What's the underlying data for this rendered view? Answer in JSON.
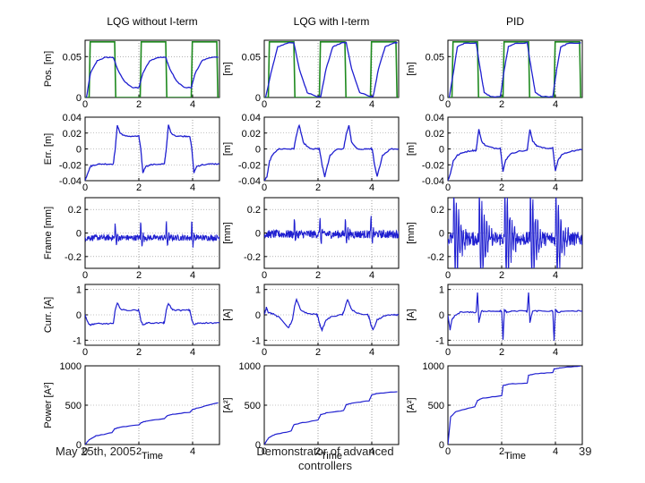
{
  "footer": {
    "date": "May 25th, 2005",
    "center": "Demonstrator of advanced controllers",
    "page": "39"
  },
  "colors": {
    "blue": "#1f1fd0",
    "green": "#1f8a1f",
    "axis": "#000000",
    "grid": "#888888"
  },
  "chart_data": {
    "type": "line",
    "layout": "5x3 subplot grid",
    "columns": [
      "LQG without I-term",
      "LQG with I-term",
      "PID"
    ],
    "xlabel": "Time",
    "xlim": [
      0,
      5
    ],
    "xticks": [
      0,
      2,
      4
    ],
    "xtick_labels": [
      "0",
      "2",
      "4"
    ],
    "rows": [
      {
        "key": "pos",
        "ylabels": [
          "Pos. [m]",
          "[m]",
          "[m]"
        ],
        "ylim": [
          0,
          0.07
        ],
        "yticks": [
          0,
          0.05
        ],
        "ytick_labels": [
          "0",
          "0.05"
        ],
        "series": [
          {
            "name": "reference",
            "color": "green"
          },
          {
            "name": "position",
            "color": "blue"
          }
        ]
      },
      {
        "key": "err",
        "ylabels": [
          "Err. [m]",
          "[m]",
          "[m]"
        ],
        "ylim": [
          -0.04,
          0.04
        ],
        "yticks": [
          -0.04,
          -0.02,
          0,
          0.02,
          0.04
        ],
        "ytick_labels": [
          "-0.04",
          "-0.02",
          "0",
          "0.02",
          "0.04"
        ],
        "series": [
          {
            "name": "error",
            "color": "blue"
          }
        ]
      },
      {
        "key": "frame",
        "ylabels": [
          "Frame [mm]",
          "[mm]",
          "[mm]"
        ],
        "ylim": [
          -0.3,
          0.3
        ],
        "yticks": [
          -0.2,
          0,
          0.2
        ],
        "ytick_labels": [
          "-0.2",
          "0",
          "0.2"
        ],
        "series": [
          {
            "name": "frame",
            "color": "blue"
          }
        ]
      },
      {
        "key": "curr",
        "ylabels": [
          "Curr. [A]",
          "[A]",
          "[A]"
        ],
        "ylim": [
          -1.2,
          1.2
        ],
        "yticks": [
          -1,
          0,
          1
        ],
        "ytick_labels": [
          "-1",
          "0",
          "1"
        ],
        "series": [
          {
            "name": "current",
            "color": "blue"
          }
        ]
      },
      {
        "key": "power",
        "ylabels": [
          "Power [A²]",
          "[A²]",
          "[A²]"
        ],
        "ylim": [
          0,
          1000
        ],
        "yticks": [
          0,
          500,
          1000
        ],
        "ytick_labels": [
          "0",
          "500",
          "1000"
        ],
        "series": [
          {
            "name": "power",
            "color": "blue"
          }
        ]
      }
    ],
    "signals": {
      "reference": {
        "low": 0.0,
        "high": 0.068,
        "switch_times": [
          0.15,
          1.1,
          2.05,
          3.0,
          3.95,
          4.9
        ],
        "start_level": "low"
      },
      "position": [
        {
          "x": [
            0.05,
            0.2,
            0.45,
            0.75,
            1.05,
            1.2,
            1.45,
            1.75,
            2.0,
            2.15,
            2.4,
            2.7,
            3.0,
            3.15,
            3.4,
            3.7,
            3.95,
            4.1,
            4.35,
            4.65,
            4.95
          ],
          "y": [
            0.0,
            0.03,
            0.045,
            0.049,
            0.049,
            0.035,
            0.02,
            0.012,
            0.012,
            0.03,
            0.045,
            0.049,
            0.049,
            0.035,
            0.02,
            0.012,
            0.012,
            0.03,
            0.045,
            0.049,
            0.049
          ]
        },
        {
          "x": [
            0.05,
            0.25,
            0.5,
            0.9,
            1.1,
            1.3,
            1.6,
            2.0,
            2.1,
            2.3,
            2.55,
            2.9,
            3.05,
            3.25,
            3.55,
            3.95,
            4.05,
            4.25,
            4.5,
            4.85,
            4.95
          ],
          "y": [
            0.0,
            0.03,
            0.062,
            0.067,
            0.067,
            0.035,
            0.006,
            0.001,
            0.001,
            0.035,
            0.062,
            0.067,
            0.067,
            0.035,
            0.006,
            0.001,
            0.001,
            0.035,
            0.062,
            0.067,
            0.067
          ]
        },
        {
          "x": [
            0.05,
            0.2,
            0.35,
            0.6,
            1.05,
            1.2,
            1.35,
            1.6,
            1.95,
            2.1,
            2.25,
            2.5,
            2.95,
            3.1,
            3.25,
            3.5,
            3.9,
            4.05,
            4.2,
            4.45,
            4.95
          ],
          "y": [
            0.0,
            0.03,
            0.062,
            0.066,
            0.067,
            0.035,
            0.006,
            0.001,
            0.001,
            0.035,
            0.062,
            0.066,
            0.067,
            0.035,
            0.006,
            0.001,
            0.001,
            0.035,
            0.062,
            0.066,
            0.067
          ]
        }
      ],
      "error": [
        {
          "x": [
            0.0,
            0.1,
            0.2,
            0.35,
            0.6,
            0.9,
            1.05,
            1.12,
            1.2,
            1.3,
            1.5,
            1.8,
            2.0,
            2.07,
            2.15,
            2.25,
            2.45,
            2.8,
            2.95,
            3.02,
            3.1,
            3.2,
            3.4,
            3.7,
            3.9,
            3.97,
            4.05,
            4.15,
            4.35,
            4.7,
            5.0
          ],
          "y": [
            -0.04,
            -0.03,
            -0.022,
            -0.02,
            -0.019,
            -0.019,
            -0.019,
            0.0,
            0.03,
            0.02,
            0.016,
            0.016,
            0.016,
            0.0,
            -0.03,
            -0.022,
            -0.02,
            -0.019,
            -0.019,
            0.0,
            0.03,
            0.02,
            0.016,
            0.016,
            0.016,
            0.0,
            -0.03,
            -0.022,
            -0.02,
            -0.019,
            -0.019
          ]
        },
        {
          "x": [
            0.0,
            0.1,
            0.2,
            0.35,
            0.55,
            0.9,
            1.1,
            1.2,
            1.3,
            1.45,
            1.7,
            2.0,
            2.05,
            2.15,
            2.25,
            2.45,
            2.7,
            2.95,
            3.05,
            3.15,
            3.25,
            3.45,
            3.75,
            3.95,
            4.02,
            4.1,
            4.2,
            4.4,
            4.7,
            5.0
          ],
          "y": [
            -0.04,
            -0.035,
            -0.015,
            -0.005,
            0.0,
            0.0,
            0.0,
            0.018,
            0.03,
            0.008,
            0.0,
            0.0,
            0.0,
            -0.02,
            -0.035,
            -0.008,
            0.0,
            0.0,
            0.018,
            0.03,
            0.008,
            0.0,
            0.0,
            0.0,
            0.0,
            -0.02,
            -0.035,
            -0.008,
            0.0,
            0.0
          ]
        },
        {
          "x": [
            0.0,
            0.1,
            0.2,
            0.35,
            0.6,
            0.9,
            1.05,
            1.15,
            1.25,
            1.4,
            1.7,
            1.95,
            2.05,
            2.15,
            2.3,
            2.6,
            2.95,
            3.05,
            3.15,
            3.3,
            3.6,
            3.9,
            4.0,
            4.1,
            4.25,
            4.55,
            5.0
          ],
          "y": [
            -0.04,
            -0.03,
            -0.015,
            -0.008,
            -0.004,
            -0.002,
            -0.002,
            0.025,
            0.01,
            0.004,
            0.001,
            0.001,
            -0.028,
            -0.014,
            -0.007,
            -0.003,
            -0.002,
            0.025,
            0.01,
            0.004,
            0.001,
            0.001,
            -0.028,
            -0.014,
            -0.007,
            -0.003,
            -0.001
          ]
        }
      ],
      "frame_spikes": [
        {
          "base_noise": 0.025,
          "offset": -0.04,
          "spike_times": [
            1.1,
            2.05,
            3.0,
            3.95
          ],
          "spike_amp": 0.06,
          "decay": 0.06
        },
        {
          "base_noise": 0.035,
          "offset": -0.01,
          "spike_times": [
            1.1,
            2.05,
            3.0,
            3.95
          ],
          "spike_amp": 0.07,
          "decay": 0.06
        },
        {
          "base_noise": 0.06,
          "offset": -0.05,
          "spike_times": [
            0.2,
            1.15,
            2.1,
            3.05,
            4.0
          ],
          "spike_amp": 0.2,
          "decay": 0.18
        }
      ],
      "current": [
        {
          "x": [
            0.0,
            0.1,
            0.2,
            0.35,
            0.6,
            0.9,
            1.05,
            1.12,
            1.2,
            1.35,
            1.6,
            1.95,
            2.0,
            2.07,
            2.15,
            2.3,
            2.55,
            2.9,
            2.95,
            3.02,
            3.1,
            3.25,
            3.5,
            3.85,
            3.9,
            3.97,
            4.05,
            4.2,
            4.45,
            4.8,
            5.0
          ],
          "y": [
            0.0,
            -0.3,
            -0.4,
            -0.35,
            -0.35,
            -0.35,
            -0.35,
            0.2,
            0.45,
            0.2,
            0.18,
            0.18,
            0.18,
            -0.2,
            -0.4,
            -0.32,
            -0.32,
            -0.32,
            -0.32,
            0.2,
            0.45,
            0.2,
            0.18,
            0.18,
            0.18,
            -0.2,
            -0.4,
            -0.32,
            -0.32,
            -0.32,
            -0.32
          ]
        },
        {
          "x": [
            0.0,
            0.08,
            0.15,
            0.3,
            0.55,
            0.9,
            1.05,
            1.12,
            1.2,
            1.35,
            1.6,
            1.95,
            2.0,
            2.07,
            2.15,
            2.3,
            2.55,
            2.9,
            2.95,
            3.02,
            3.1,
            3.25,
            3.5,
            3.85,
            3.9,
            3.97,
            4.05,
            4.2,
            4.45,
            4.8,
            5.0
          ],
          "y": [
            0.0,
            0.3,
            0.1,
            0.05,
            -0.1,
            -0.5,
            -0.2,
            0.3,
            0.6,
            0.2,
            0.05,
            0.02,
            -0.1,
            -0.4,
            -0.6,
            -0.2,
            -0.05,
            0.0,
            0.1,
            0.35,
            0.6,
            0.2,
            0.05,
            0.0,
            -0.1,
            -0.4,
            -0.6,
            -0.2,
            -0.05,
            0.0,
            0.0
          ]
        },
        {
          "x": [
            0.0,
            0.08,
            0.15,
            0.25,
            0.45,
            0.8,
            1.05,
            1.1,
            1.15,
            1.25,
            1.45,
            1.9,
            2.0,
            2.05,
            2.1,
            2.2,
            2.4,
            2.9,
            2.95,
            3.0,
            3.05,
            3.15,
            3.35,
            3.85,
            3.9,
            3.95,
            4.0,
            4.1,
            4.3,
            4.8,
            5.0
          ],
          "y": [
            0.0,
            -0.6,
            -0.2,
            -0.05,
            0.1,
            0.1,
            0.1,
            0.9,
            -0.3,
            0.15,
            0.15,
            0.15,
            0.15,
            -1.0,
            0.2,
            0.1,
            0.15,
            0.15,
            0.15,
            0.9,
            -0.3,
            0.15,
            0.15,
            0.15,
            0.15,
            -1.0,
            0.2,
            0.1,
            0.15,
            0.15,
            0.15
          ]
        }
      ],
      "power": [
        {
          "x": [
            0.0,
            0.15,
            0.4,
            1.0,
            1.1,
            1.3,
            2.0,
            2.1,
            2.3,
            2.95,
            3.05,
            3.25,
            3.9,
            4.0,
            4.2,
            4.95
          ],
          "y": [
            0,
            60,
            110,
            150,
            200,
            220,
            250,
            280,
            300,
            330,
            365,
            385,
            410,
            445,
            465,
            530
          ]
        },
        {
          "x": [
            0.0,
            0.15,
            0.4,
            1.0,
            1.1,
            1.3,
            2.0,
            2.1,
            2.3,
            2.95,
            3.05,
            3.25,
            3.9,
            4.0,
            4.2,
            4.95
          ],
          "y": [
            0,
            80,
            130,
            170,
            250,
            270,
            310,
            380,
            400,
            430,
            505,
            525,
            555,
            630,
            650,
            670
          ]
        },
        {
          "x": [
            0.0,
            0.1,
            0.3,
            1.0,
            1.1,
            1.3,
            2.0,
            2.05,
            2.3,
            2.95,
            3.0,
            3.25,
            3.9,
            3.95,
            4.2,
            4.95
          ],
          "y": [
            0,
            350,
            420,
            480,
            560,
            590,
            620,
            750,
            770,
            780,
            880,
            900,
            915,
            960,
            975,
            1000
          ]
        }
      ]
    }
  }
}
